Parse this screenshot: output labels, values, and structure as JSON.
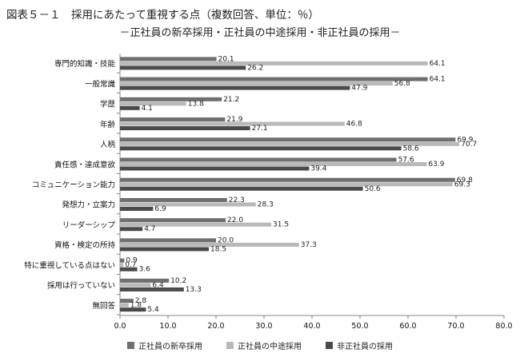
{
  "title": "図表５－１　採用にあたって重視する点（複数回答、単位：％）",
  "subtitle": "－正社員の新卒採用・正社員の中途採用・非正社員の採用－",
  "chart_data": {
    "type": "bar",
    "orientation": "horizontal",
    "categories": [
      "専門的知識・技能",
      "一般常識",
      "学歴",
      "年齢",
      "人柄",
      "責任感・達成意欲",
      "コミュニケーション能力",
      "発想力・立案力",
      "リーダーシップ",
      "資格・検定の所持",
      "特に重視している点はない",
      "採用は行っていない",
      "無回答"
    ],
    "series": [
      {
        "name": "正社員の新卒採用",
        "color": "#6f6f6f",
        "values": [
          20.1,
          64.1,
          21.2,
          21.9,
          69.9,
          57.6,
          69.8,
          22.3,
          22.0,
          20.0,
          0.9,
          10.2,
          2.8
        ]
      },
      {
        "name": "正社員の中途採用",
        "color": "#b9b9b9",
        "values": [
          64.1,
          56.8,
          13.8,
          46.8,
          70.7,
          63.9,
          69.3,
          28.3,
          31.5,
          37.3,
          0.7,
          6.4,
          1.8
        ]
      },
      {
        "name": "非正社員の採用",
        "color": "#4a4a4a",
        "values": [
          26.2,
          47.9,
          4.1,
          27.1,
          58.6,
          39.4,
          50.6,
          6.9,
          4.7,
          18.5,
          3.6,
          13.3,
          5.4
        ]
      }
    ],
    "xlim": [
      0,
      80
    ],
    "xticks": [
      "0.0",
      "10.0",
      "20.0",
      "30.0",
      "40.0",
      "50.0",
      "60.0",
      "70.0",
      "80.0"
    ],
    "grid": false,
    "legend_position": "bottom"
  }
}
